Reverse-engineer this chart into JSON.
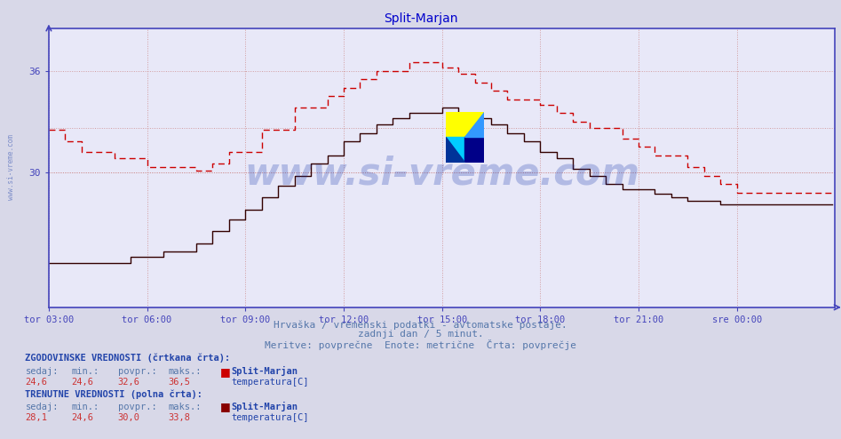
{
  "title": "Split-Marjan",
  "title_color": "#0000cc",
  "bg_color": "#d8d8e8",
  "plot_bg_color": "#e8e8f8",
  "grid_color": "#cc8888",
  "axis_color": "#4444bb",
  "xlabel_ticks": [
    "tor 03:00",
    "tor 06:00",
    "tor 09:00",
    "tor 12:00",
    "tor 15:00",
    "tor 18:00",
    "tor 21:00",
    "sre 00:00"
  ],
  "yticks": [
    30,
    36
  ],
  "ylim": [
    22.0,
    38.5
  ],
  "xlim": [
    0,
    288
  ],
  "tick_positions_x": [
    0,
    36,
    72,
    108,
    144,
    180,
    216,
    252
  ],
  "line_color_dashed": "#cc0000",
  "line_color_solid": "#330000",
  "watermark_text": "www.si-vreme.com",
  "watermark_color": "#1133aa",
  "watermark_alpha": 0.25,
  "subtitle1": "Hrvaška / vremenski podatki - avtomatske postaje.",
  "subtitle2": "zadnji dan / 5 minut.",
  "subtitle3": "Meritve: povprečne  Enote: metrične  Črta: povprečje",
  "subtitle_color": "#5577aa",
  "legend_hist_label": "ZGODOVINSKE VREDNOSTI (črtkana črta):",
  "legend_curr_label": "TRENUTNE VREDNOSTI (polna črta):",
  "legend_color": "#2244aa",
  "hist_sedaj": "24,6",
  "hist_min": "24,6",
  "hist_povpr": "32,6",
  "hist_maks": "36,5",
  "curr_sedaj": "28,1",
  "curr_min": "24,6",
  "curr_povpr": "30,0",
  "curr_maks": "33,8",
  "station_name": "Split-Marjan",
  "sensor_label": "temperatura[C]",
  "sivreme_side_text": "www.si-vreme.com"
}
